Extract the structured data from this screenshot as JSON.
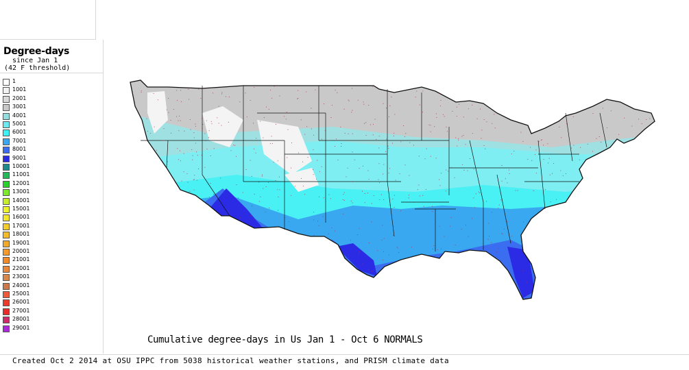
{
  "legend": {
    "title": "Degree-days",
    "subtitle_line1": "since Jan 1",
    "subtitle_line2": "(42 F threshold)",
    "items": [
      {
        "label": "1",
        "color": "#ffffff"
      },
      {
        "label": "1001",
        "color": "#f2f2f2"
      },
      {
        "label": "2001",
        "color": "#d9d9d9"
      },
      {
        "label": "3001",
        "color": "#c8c8c8"
      },
      {
        "label": "4001",
        "color": "#93dede"
      },
      {
        "label": "5001",
        "color": "#6ee9ee"
      },
      {
        "label": "6001",
        "color": "#3df2f2"
      },
      {
        "label": "7001",
        "color": "#3aa8f0"
      },
      {
        "label": "8001",
        "color": "#3a6df0"
      },
      {
        "label": "9001",
        "color": "#2b2be6"
      },
      {
        "label": "10001",
        "color": "#1f8a8a"
      },
      {
        "label": "11001",
        "color": "#22b85a"
      },
      {
        "label": "12001",
        "color": "#2ad12a"
      },
      {
        "label": "13001",
        "color": "#7ee82a"
      },
      {
        "label": "14001",
        "color": "#c8ee2a"
      },
      {
        "label": "15001",
        "color": "#eef22a"
      },
      {
        "label": "16001",
        "color": "#f2e62a"
      },
      {
        "label": "17001",
        "color": "#f2cc2a"
      },
      {
        "label": "18001",
        "color": "#f2bb2a"
      },
      {
        "label": "19001",
        "color": "#f2aa2a"
      },
      {
        "label": "20001",
        "color": "#f29a2a"
      },
      {
        "label": "21001",
        "color": "#f28a2a"
      },
      {
        "label": "22001",
        "color": "#e8883a"
      },
      {
        "label": "23001",
        "color": "#d8884a"
      },
      {
        "label": "24001",
        "color": "#cc7a4a"
      },
      {
        "label": "25001",
        "color": "#ee5a3a"
      },
      {
        "label": "26001",
        "color": "#ee3a2a"
      },
      {
        "label": "27001",
        "color": "#e82a2a"
      },
      {
        "label": "28001",
        "color": "#cc2a6a"
      },
      {
        "label": "29001",
        "color": "#aa2ad8"
      }
    ]
  },
  "map": {
    "caption": "Cumulative degree-days in Us  Jan 1 - Oct 6 NORMALS",
    "zone_colors": {
      "border": "#111111",
      "coast": "#3a3a3a",
      "gray": "#c9c9c9",
      "white": "#f4f4f4",
      "teal_gray": "#9fe1e3",
      "light_cyan": "#7eeef2",
      "cyan": "#49f0f4",
      "blue": "#3aa8f0",
      "mid_blue": "#3a6df0",
      "deep_blue": "#2b2be6"
    }
  },
  "footer": {
    "credit": "Created Oct 2 2014 at OSU IPPC from 5038 historical weather stations, and PRISM climate data"
  }
}
